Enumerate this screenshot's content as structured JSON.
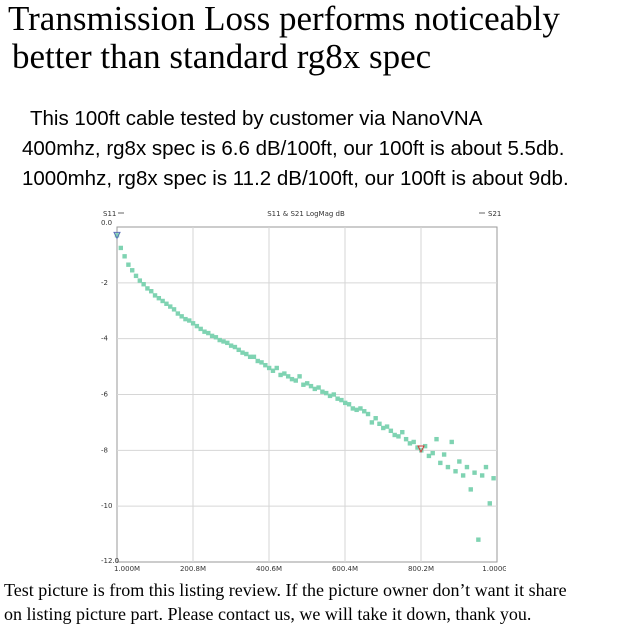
{
  "header": {
    "line1": "Transmission Loss performs noticeably",
    "line2": "better than standard rg8x spec"
  },
  "body": {
    "intro": "This 100ft cable tested by customer via NanoVNA",
    "line_400": "400mhz, rg8x spec is 6.6 dB/100ft, our 100ft is about 5.5db.",
    "line_1000": "1000mhz, rg8x spec is 11.2 dB/100ft, our 100ft is about 9db."
  },
  "footer": {
    "line1": "Test picture is from this listing review. If the picture owner don’t want it share",
    "line2": "on listing picture part. Please contact us, we will take it down, thank you."
  },
  "chart_data": {
    "type": "scatter",
    "title": "S11 & S21 LogMag dB",
    "legend_left": "S11",
    "legend_right": "S21",
    "x_unit": "MHz",
    "xlim": [
      1.0,
      1000.0
    ],
    "ylim": [
      -12.0,
      0.0
    ],
    "x_ticks": [
      1.0,
      200.8,
      400.6,
      600.4,
      800.2,
      1000.0
    ],
    "x_tick_labels": [
      "1.000M",
      "200.8M",
      "400.6M",
      "600.4M",
      "800.2M",
      "1.000G"
    ],
    "y_ticks": [
      0,
      -2,
      -4,
      -6,
      -8,
      -10,
      -12
    ],
    "y_tick_labels": [
      "0.0",
      "-2",
      "-4",
      "-6",
      "-8",
      "-10",
      "-12.0"
    ],
    "grid": true,
    "marker_color": "#7fd3b2",
    "marker_triangle_color": "#5a6fb8",
    "marker_triangle2_color": "#d23a3a",
    "markers": [
      {
        "x": 1.0,
        "y": -0.3
      },
      {
        "x": 800.2,
        "y": -7.95
      }
    ],
    "series": [
      {
        "x": [
          1,
          11,
          21,
          31,
          41,
          51,
          61,
          71,
          81,
          91,
          101,
          111,
          121,
          131,
          141,
          151,
          161,
          171,
          181,
          191,
          201,
          211,
          221,
          231,
          241,
          251,
          261,
          271,
          281,
          291,
          301,
          311,
          321,
          331,
          341,
          351,
          361,
          371,
          381,
          391,
          401,
          411,
          421,
          431,
          441,
          451,
          461,
          471,
          481,
          491,
          501,
          511,
          521,
          531,
          541,
          551,
          561,
          571,
          581,
          591,
          601,
          611,
          621,
          631,
          641,
          651,
          661,
          671,
          681,
          691,
          701,
          711,
          721,
          731,
          741,
          751,
          761,
          771,
          781,
          791,
          801,
          811,
          821,
          831,
          841,
          851,
          861,
          871,
          881,
          891,
          901,
          911,
          921,
          931,
          941,
          951,
          961,
          971,
          981,
          991
        ],
        "y": [
          -0.3,
          -0.75,
          -1.05,
          -1.35,
          -1.55,
          -1.75,
          -1.92,
          -2.05,
          -2.2,
          -2.3,
          -2.45,
          -2.55,
          -2.65,
          -2.75,
          -2.85,
          -2.95,
          -3.1,
          -3.2,
          -3.3,
          -3.35,
          -3.45,
          -3.55,
          -3.65,
          -3.75,
          -3.8,
          -3.9,
          -3.95,
          -4.05,
          -4.1,
          -4.15,
          -4.25,
          -4.3,
          -4.4,
          -4.5,
          -4.55,
          -4.65,
          -4.65,
          -4.8,
          -4.85,
          -4.95,
          -5.05,
          -5.15,
          -5.05,
          -5.3,
          -5.25,
          -5.35,
          -5.45,
          -5.5,
          -5.35,
          -5.65,
          -5.6,
          -5.7,
          -5.8,
          -5.75,
          -5.9,
          -5.95,
          -6.05,
          -6.0,
          -6.15,
          -6.2,
          -6.3,
          -6.35,
          -6.5,
          -6.55,
          -6.5,
          -6.6,
          -6.7,
          -7.0,
          -6.85,
          -7.05,
          -7.2,
          -7.15,
          -7.3,
          -7.45,
          -7.5,
          -7.35,
          -7.6,
          -7.75,
          -7.7,
          -7.9,
          -8.0,
          -7.85,
          -8.2,
          -8.1,
          -7.6,
          -8.45,
          -8.15,
          -8.6,
          -7.7,
          -8.75,
          -8.4,
          -8.9,
          -8.6,
          -9.4,
          -8.8,
          -11.2,
          -8.9,
          -8.6,
          -9.9,
          -9.0
        ]
      }
    ]
  }
}
